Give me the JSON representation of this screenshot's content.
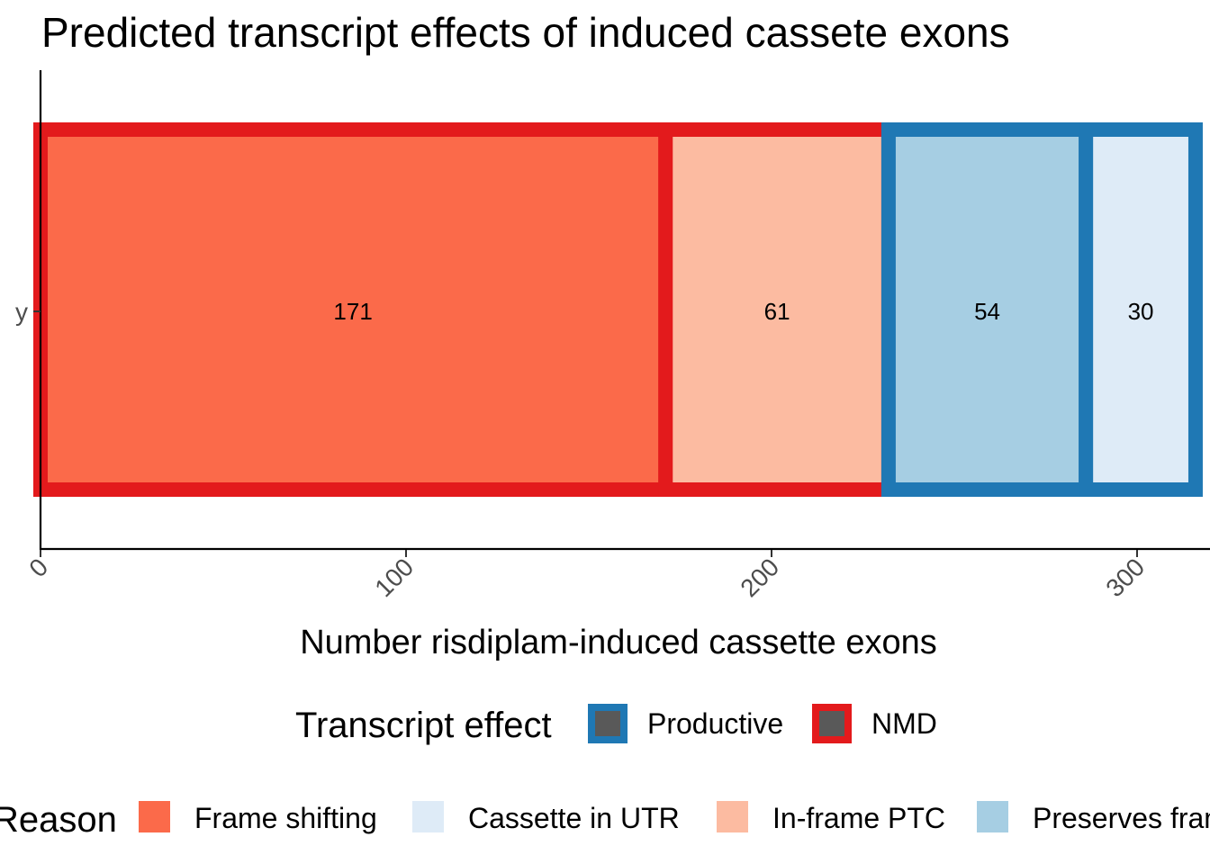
{
  "chart_data": {
    "type": "bar",
    "orientation": "horizontal",
    "stacked": true,
    "title": "Predicted transcript effects of induced cassete exons",
    "xlabel": "Number risdiplam-induced cassette exons",
    "ylabel": "",
    "category": "y",
    "xlim": [
      0,
      316
    ],
    "x_ticks": [
      0,
      100,
      200,
      300
    ],
    "grid": false,
    "segments": [
      {
        "reason": "Frame shifting",
        "effect": "NMD",
        "value": 171,
        "label": "171"
      },
      {
        "reason": "In-frame PTC",
        "effect": "NMD",
        "value": 61,
        "label": "61"
      },
      {
        "reason": "Preserves frame",
        "effect": "Productive",
        "value": 54,
        "label": "54"
      },
      {
        "reason": "Cassette in UTR",
        "effect": "Productive",
        "value": 30,
        "label": "30"
      }
    ],
    "legend_effect": {
      "title": "Transcript effect",
      "placement": "bottom",
      "items": [
        {
          "name": "Productive",
          "color": "#1f78b4"
        },
        {
          "name": "NMD",
          "color": "#e31a1c"
        }
      ]
    },
    "legend_reason": {
      "title": "Reason",
      "placement": "bottom",
      "items": [
        {
          "name": "Frame shifting",
          "color": "#fb6a4a"
        },
        {
          "name": "Cassette in UTR",
          "color": "#deebf7"
        },
        {
          "name": "In-frame PTC",
          "color": "#fcbba1"
        },
        {
          "name": "Preserves frame",
          "color": "#a6cee3"
        }
      ]
    },
    "legend_key_fill": "#595959"
  }
}
